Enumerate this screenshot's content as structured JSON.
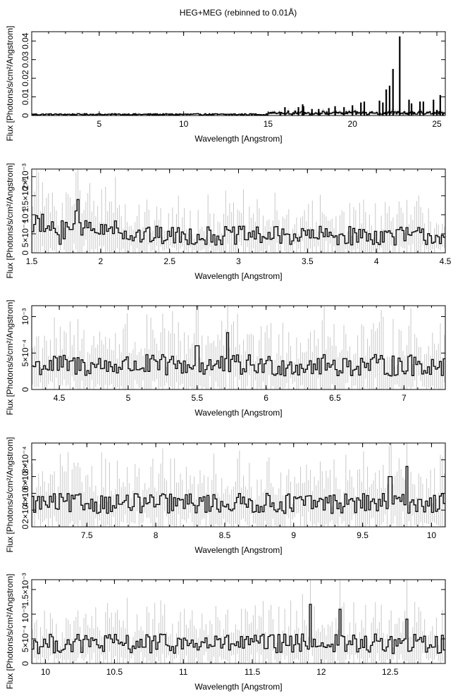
{
  "title": "HEG+MEG (rebinned to 0.01Å)",
  "colors": {
    "data": "#000000",
    "errorbar": "#c8c8c8",
    "axes": "#000000",
    "background": "#ffffff"
  },
  "chart_data": [
    {
      "type": "line",
      "style": "histogram",
      "xlabel": "Wavelength [Angstrom]",
      "ylabel": "Flux [Photons/s/cm²/Angstrom]",
      "xlim": [
        1.0,
        25.5
      ],
      "ylim": [
        0,
        0.045
      ],
      "x_ticks": [
        5,
        10,
        15,
        20,
        25
      ],
      "x_tick_labels": [
        "5",
        "10",
        "15",
        "20",
        "25"
      ],
      "y_ticks": [
        0,
        0.01,
        0.02,
        0.03,
        0.04
      ],
      "y_tick_labels": [
        "0",
        "0.01",
        "0.02",
        "0.03",
        "0.04"
      ],
      "emission_lines": [
        {
          "x": 16.0,
          "y": 0.0045
        },
        {
          "x": 16.8,
          "y": 0.0045
        },
        {
          "x": 17.05,
          "y": 0.006
        },
        {
          "x": 17.1,
          "y": 0.005
        },
        {
          "x": 17.6,
          "y": 0.0035
        },
        {
          "x": 18.0,
          "y": 0.0035
        },
        {
          "x": 18.6,
          "y": 0.004
        },
        {
          "x": 18.97,
          "y": 0.005
        },
        {
          "x": 19.5,
          "y": 0.0045
        },
        {
          "x": 20.0,
          "y": 0.0055
        },
        {
          "x": 20.5,
          "y": 0.007
        },
        {
          "x": 20.7,
          "y": 0.0075
        },
        {
          "x": 21.6,
          "y": 0.008
        },
        {
          "x": 21.8,
          "y": 0.007
        },
        {
          "x": 22.0,
          "y": 0.014
        },
        {
          "x": 22.2,
          "y": 0.016
        },
        {
          "x": 22.4,
          "y": 0.025
        },
        {
          "x": 22.8,
          "y": 0.0425
        },
        {
          "x": 23.35,
          "y": 0.0085
        },
        {
          "x": 23.5,
          "y": 0.0065
        },
        {
          "x": 24.0,
          "y": 0.0075
        },
        {
          "x": 24.2,
          "y": 0.0075
        },
        {
          "x": 24.8,
          "y": 0.0085
        },
        {
          "x": 25.0,
          "y": 0.003
        },
        {
          "x": 25.2,
          "y": 0.011
        }
      ],
      "continuum": {
        "level": 0.0006,
        "scatter": 0.0004
      }
    },
    {
      "type": "line",
      "style": "histogram",
      "xlabel": "Wavelength [Angstrom]",
      "ylabel": "Flux [Photons/s/cm²/Angstrom]",
      "xlim": [
        1.5,
        4.5
      ],
      "ylim": [
        0,
        0.0022
      ],
      "x_ticks": [
        1.5,
        2,
        2.5,
        3,
        3.5,
        4,
        4.5
      ],
      "x_tick_labels": [
        "1.5",
        "2",
        "2.5",
        "3",
        "3.5",
        "4",
        "4.5"
      ],
      "y_ticks": [
        0,
        0.0005,
        0.001,
        0.0015,
        0.002
      ],
      "y_tick_labels": [
        "0",
        "5×10⁻⁴",
        "10⁻³",
        "1.5×10⁻³",
        "2×10⁻³"
      ],
      "continuum": {
        "level": 0.00045,
        "scatter": 0.00025
      },
      "peaks": [
        {
          "x": 1.84,
          "y": 0.0014
        },
        {
          "x": 1.82,
          "y": 0.0011
        },
        {
          "x": 1.55,
          "y": 0.0009
        }
      ]
    },
    {
      "type": "line",
      "style": "histogram",
      "xlabel": "Wavelength [Angstrom]",
      "ylabel": "Flux [Photons/s/cm²/Angstrom]",
      "xlim": [
        4.3,
        7.3
      ],
      "ylim": [
        0,
        0.00115
      ],
      "x_ticks": [
        4.5,
        5,
        5.5,
        6,
        6.5,
        7
      ],
      "x_tick_labels": [
        "4.5",
        "5",
        "5.5",
        "6",
        "6.5",
        "7"
      ],
      "y_ticks": [
        0,
        0.0005,
        0.001
      ],
      "y_tick_labels": [
        "0",
        "5×10⁻⁴",
        "10⁻³"
      ],
      "continuum": {
        "level": 0.00033,
        "scatter": 0.00015
      },
      "peaks": [
        {
          "x": 5.72,
          "y": 0.00078
        },
        {
          "x": 5.5,
          "y": 0.0006
        }
      ]
    },
    {
      "type": "line",
      "style": "histogram",
      "xlabel": "Wavelength [Angstrom]",
      "ylabel": "Flux [Photons/s/cm²/Angstrom]",
      "xlim": [
        7.1,
        10.1
      ],
      "ylim": [
        0,
        0.001
      ],
      "x_ticks": [
        7.5,
        8,
        8.5,
        9,
        9.5,
        10
      ],
      "x_tick_labels": [
        "7.5",
        "8",
        "8.5",
        "9",
        "9.5",
        "10"
      ],
      "y_ticks": [
        0,
        0.0002,
        0.0004,
        0.0006,
        0.0008
      ],
      "y_tick_labels": [
        "0",
        "2×10⁻⁴",
        "4×10⁻⁴",
        "6×10⁻⁴",
        "8×10⁻⁴"
      ],
      "continuum": {
        "level": 0.00028,
        "scatter": 0.00012
      },
      "peaks": [
        {
          "x": 9.82,
          "y": 0.00072
        },
        {
          "x": 9.7,
          "y": 0.0006
        }
      ]
    },
    {
      "type": "line",
      "style": "histogram",
      "xlabel": "Wavelength [Angstrom]",
      "ylabel": "Flux [Photons/s/cm²/Angstrom]",
      "xlim": [
        9.9,
        12.9
      ],
      "ylim": [
        0,
        0.0017
      ],
      "x_ticks": [
        10,
        10.5,
        11,
        11.5,
        12,
        12.5
      ],
      "x_tick_labels": [
        "10",
        "10.5",
        "11",
        "11.5",
        "12",
        "12.5"
      ],
      "y_ticks": [
        0,
        0.0005,
        0.001,
        0.0015
      ],
      "y_tick_labels": [
        "0",
        "5×10⁻⁴",
        "10⁻³",
        "1.5×10⁻³"
      ],
      "continuum": {
        "level": 0.0004,
        "scatter": 0.0002
      },
      "peaks": [
        {
          "x": 12.13,
          "y": 0.0011
        },
        {
          "x": 11.92,
          "y": 0.0012
        },
        {
          "x": 12.62,
          "y": 0.0009
        }
      ]
    }
  ]
}
